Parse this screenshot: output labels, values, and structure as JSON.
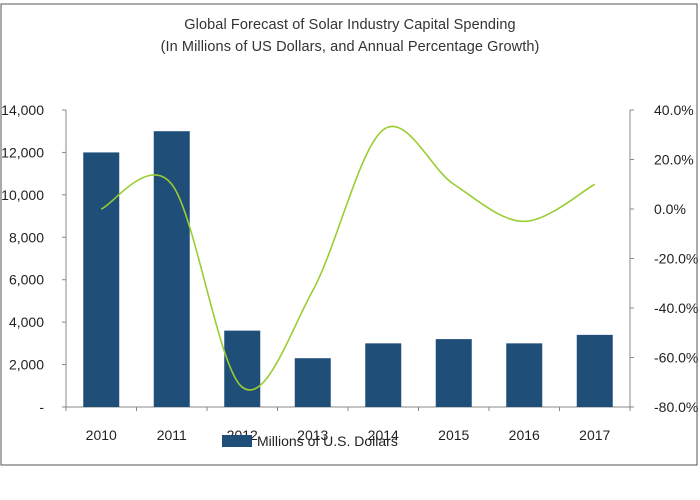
{
  "chart_data": {
    "type": "bar+line",
    "title": "Global Forecast of Solar Industry Capital Spending",
    "subtitle": "(In Millions of US Dollars, and Annual Percentage Growth)",
    "categories": [
      "2010",
      "2011",
      "2012",
      "2013",
      "2014",
      "2015",
      "2016",
      "2017"
    ],
    "series": [
      {
        "name": "Millions of U.S. Dollars",
        "type": "bar",
        "axis": "left",
        "values": [
          12000,
          13000,
          3600,
          2300,
          3000,
          3200,
          3000,
          3400
        ]
      },
      {
        "name": "Annual Percentage Growth",
        "type": "line",
        "axis": "right",
        "values": [
          0,
          10,
          -72,
          -33,
          32,
          10,
          -5,
          10
        ]
      }
    ],
    "y_left": {
      "min": 0,
      "max": 14000,
      "ticks": [
        0,
        2000,
        4000,
        6000,
        8000,
        10000,
        12000,
        14000
      ],
      "tick_labels": [
        "-",
        "2,000",
        "4,000",
        "6,000",
        "8,000",
        "10,000",
        "12,000",
        "14,000"
      ]
    },
    "y_right": {
      "min": -80,
      "max": 40,
      "ticks": [
        -80,
        -60,
        -40,
        -20,
        0,
        20,
        40
      ],
      "tick_labels": [
        "-80.0%",
        "-60.0%",
        "-40.0%",
        "-20.0%",
        "0.0%",
        "20.0%",
        "40.0%"
      ]
    },
    "legend": {
      "position": "bottom",
      "entries": [
        "Millions of U.S. Dollars"
      ]
    },
    "grid": false,
    "colors": {
      "bar": "#1f4e79",
      "line": "#9acd32",
      "axis": "#888888",
      "text": "#222222",
      "border": "#555555"
    }
  }
}
